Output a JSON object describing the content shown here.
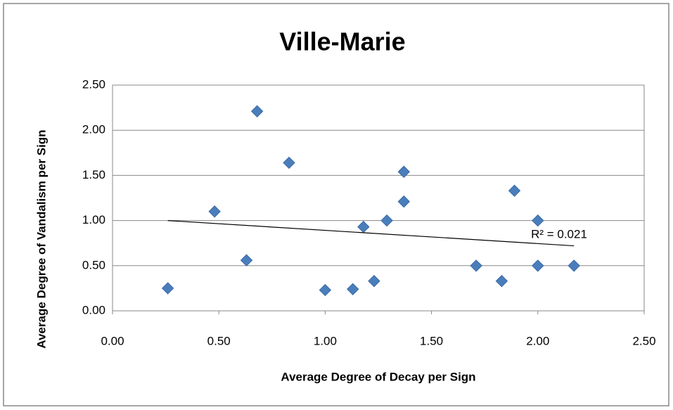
{
  "chart_data": {
    "type": "scatter",
    "title": "Ville-Marie",
    "x_label": "Average Degree of Decay per Sign",
    "y_label": "Average Degree of Vandalism per Sign",
    "x": [
      0.26,
      0.48,
      0.63,
      0.68,
      0.83,
      1.0,
      1.13,
      1.18,
      1.23,
      1.29,
      1.37,
      1.37,
      1.71,
      1.83,
      1.89,
      2.0,
      2.0,
      2.17
    ],
    "values": [
      0.25,
      1.1,
      0.56,
      2.21,
      1.64,
      0.23,
      0.24,
      0.93,
      0.33,
      1.0,
      1.54,
      1.21,
      0.5,
      0.33,
      1.33,
      1.0,
      0.5,
      0.5
    ],
    "color": "#4a7ebb",
    "xlim": [
      0,
      2.5
    ],
    "xticks": [
      {
        "value": 0,
        "label": "0.00"
      },
      {
        "value": 0.5,
        "label": "0.50"
      },
      {
        "value": 1,
        "label": "1.00"
      },
      {
        "value": 1.5,
        "label": "1.50"
      },
      {
        "value": 2,
        "label": "2.00"
      },
      {
        "value": 2.5,
        "label": "2.50"
      }
    ],
    "ylim": [
      0,
      2.5
    ],
    "yticks": [
      {
        "value": 0,
        "label": "0.00"
      },
      {
        "value": 0.5,
        "label": "0.50"
      },
      {
        "value": 1,
        "label": "1.00"
      },
      {
        "value": 1.5,
        "label": "1.50"
      },
      {
        "value": 2,
        "label": "2.00"
      },
      {
        "value": 2.5,
        "label": "2.50"
      }
    ],
    "grid": true,
    "trendline": {
      "x": [
        0.26,
        2.17
      ],
      "y": [
        1.0,
        0.72
      ],
      "label": "R² = 0.021"
    }
  }
}
